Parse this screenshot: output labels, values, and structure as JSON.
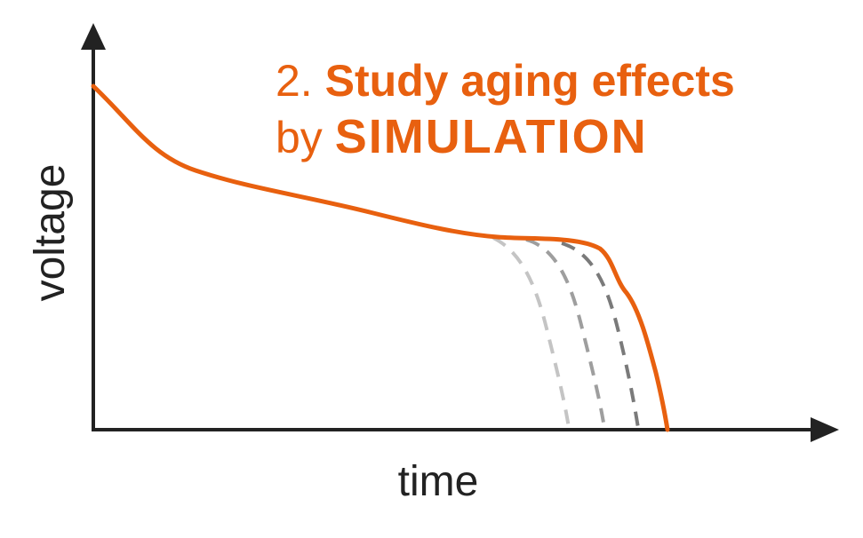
{
  "title": {
    "line1_prefix": "2. ",
    "line1_bold": "Study aging effects",
    "line2_prefix": "by ",
    "line2_bold": "SIMULATION"
  },
  "axes": {
    "y_label": "voltage",
    "x_label": "time"
  },
  "colors": {
    "accent": "#E8600F",
    "axis": "#222222",
    "aged_curves": [
      "#c4c4c4",
      "#9e9e9e",
      "#7a7a7a"
    ]
  },
  "curves": {
    "main": "discharge curve",
    "aged_count": 3,
    "aged_style": "dashed"
  }
}
